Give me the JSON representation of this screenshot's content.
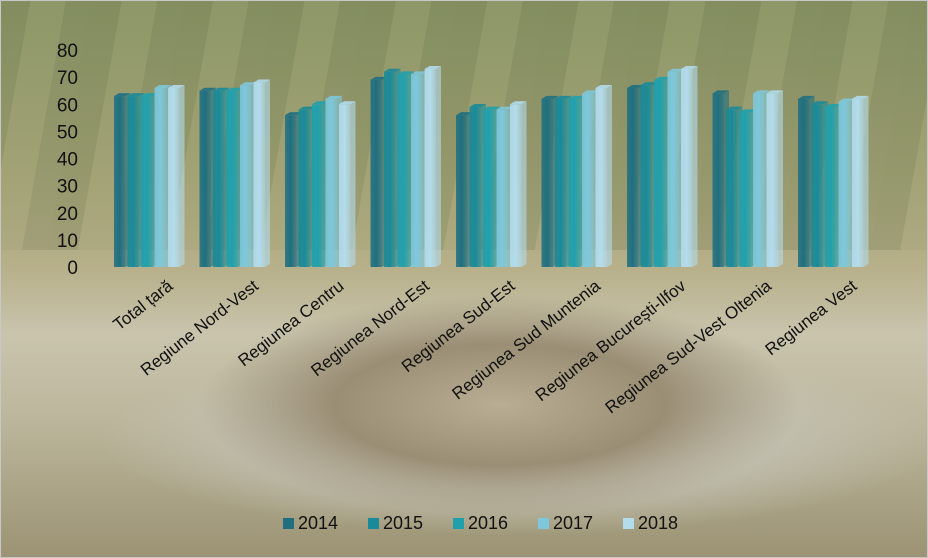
{
  "chart_data": {
    "type": "bar",
    "categories": [
      "Total țară",
      "Regiune Nord-Vest",
      "Regiunea Centru",
      "Regiunea Nord-Est",
      "Regiunea Sud-Est",
      "Regiunea Sud Muntenia",
      "Regiunea București-Ilfov",
      "Regiunea Sud-Vest Oltenia",
      "Regiunea Vest"
    ],
    "series": [
      {
        "name": "2014",
        "color": "#1f6f80",
        "values": [
          63,
          65,
          56,
          69,
          56,
          62,
          66,
          64,
          62
        ]
      },
      {
        "name": "2015",
        "color": "#1a8a98",
        "values": [
          63,
          65,
          58,
          72,
          59,
          62,
          67,
          58,
          60
        ]
      },
      {
        "name": "2016",
        "color": "#20a0ad",
        "values": [
          63,
          65,
          60,
          71,
          58,
          62,
          69,
          57,
          59
        ]
      },
      {
        "name": "2017",
        "color": "#7ec8dc",
        "values": [
          66,
          67,
          62,
          71,
          58,
          64,
          72,
          64,
          61
        ]
      },
      {
        "name": "2018",
        "color": "#b3dced",
        "values": [
          66,
          68,
          60,
          73,
          60,
          66,
          73,
          64,
          62
        ]
      }
    ],
    "ylim": [
      0,
      80
    ],
    "yticks": [
      0,
      10,
      20,
      30,
      40,
      50,
      60,
      70,
      80
    ],
    "legend_position": "bottom",
    "grid": false
  }
}
